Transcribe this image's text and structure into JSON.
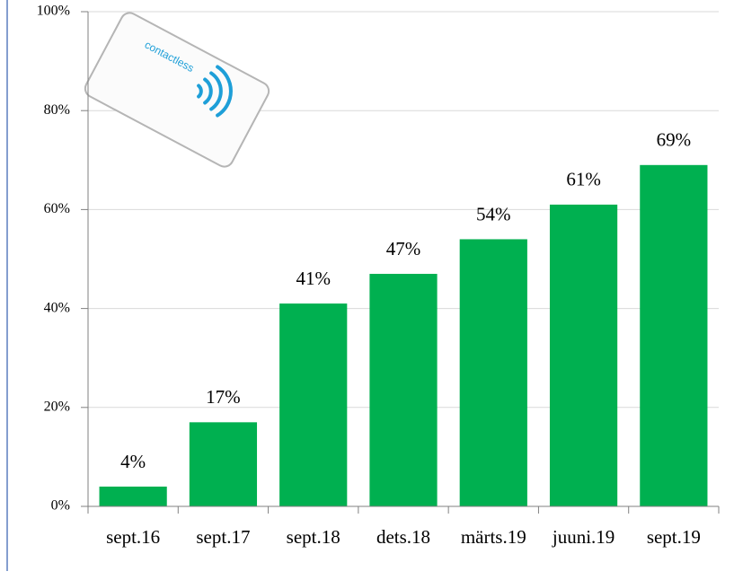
{
  "chart_data": {
    "type": "bar",
    "card_label": "contactless",
    "categories": [
      "sept.16",
      "sept.17",
      "sept.18",
      "dets.18",
      "märts.19",
      "juuni.19",
      "sept.19"
    ],
    "values": [
      4,
      17,
      41,
      47,
      54,
      61,
      69
    ],
    "value_labels": [
      "4%",
      "17%",
      "41%",
      "47%",
      "54%",
      "61%",
      "69%"
    ],
    "color": "#00b050",
    "ylim": [
      0,
      100
    ],
    "yticks": [
      {
        "value": 0,
        "label": "0%"
      },
      {
        "value": 20,
        "label": "20%"
      },
      {
        "value": 40,
        "label": "40%"
      },
      {
        "value": 60,
        "label": "60%"
      },
      {
        "value": 80,
        "label": "80%"
      },
      {
        "value": 100,
        "label": "100%"
      }
    ],
    "grid": true
  }
}
